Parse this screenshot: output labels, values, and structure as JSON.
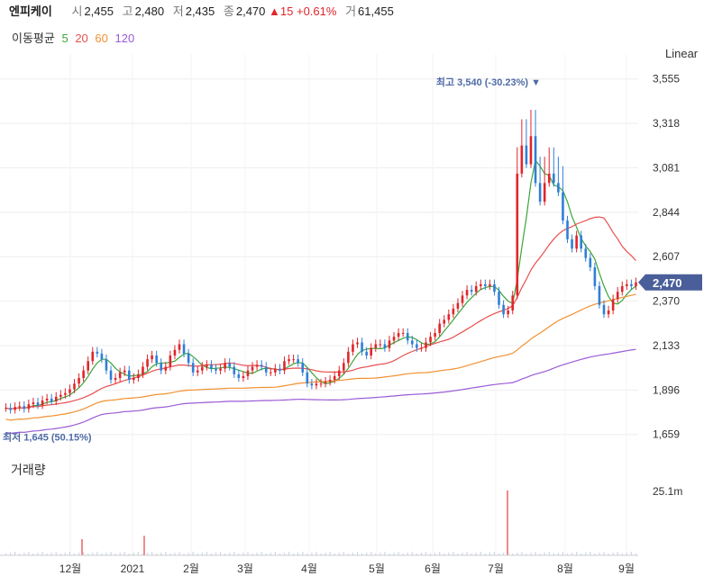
{
  "header": {
    "name": "엔피케이",
    "open_label": "시",
    "open": "2,455",
    "high_label": "고",
    "high": "2,480",
    "low_label": "저",
    "low": "2,435",
    "close_label": "종",
    "close": "2,470",
    "change": "▲15",
    "change_pct": "+0.61%",
    "volume_label": "거",
    "volume": "61,455"
  },
  "ma_legend": {
    "title": "이동평균",
    "periods": [
      {
        "label": "5",
        "color": "#3aa53a"
      },
      {
        "label": "20",
        "color": "#e8504f"
      },
      {
        "label": "60",
        "color": "#f19030"
      },
      {
        "label": "120",
        "color": "#9a5bd6"
      }
    ]
  },
  "scale_label": "Linear",
  "volume_panel_label": "거래량",
  "colors": {
    "up": "#e0262b",
    "down": "#2f7fd6",
    "grid": "#eeeeee",
    "current_price_tag": "#4a5f9a"
  },
  "chart_data": {
    "type": "candlestick",
    "y_axis": {
      "ticks": [
        1659,
        1896,
        2133,
        2370,
        2607,
        2844,
        3081,
        3318,
        3555
      ],
      "tick_labels": [
        "1,659",
        "1,896",
        "2,133",
        "2,370",
        "2,607",
        "2,844",
        "3,081",
        "3,318",
        "3,555"
      ]
    },
    "x_axis": {
      "labels": [
        "12월",
        "2021",
        "2월",
        "3월",
        "4월",
        "5월",
        "6월",
        "7월",
        "8월",
        "9월"
      ]
    },
    "current_price": {
      "value": 2470,
      "label": "2,470"
    },
    "max_marker": {
      "value": 3540,
      "label": "최고 3,540 (-30.23%)"
    },
    "min_marker": {
      "value": 1645,
      "label": "최저 1,645 (50.15%)"
    },
    "volume_axis": {
      "ticks": [
        25100000
      ],
      "tick_labels": [
        "25.1m"
      ]
    },
    "daily_closes": [
      1800,
      1790,
      1805,
      1810,
      1795,
      1820,
      1830,
      1815,
      1840,
      1850,
      1835,
      1860,
      1870,
      1880,
      1900,
      1930,
      1960,
      2000,
      2050,
      2100,
      2090,
      2060,
      2000,
      1950,
      1960,
      1990,
      2000,
      1950,
      1960,
      1980,
      2020,
      2060,
      2080,
      2040,
      2000,
      2020,
      2080,
      2110,
      2140,
      2090,
      2040,
      1990,
      2000,
      2020,
      2030,
      2010,
      2000,
      2010,
      2040,
      2020,
      1980,
      1960,
      1970,
      2000,
      2020,
      2030,
      2020,
      1990,
      1990,
      2010,
      2000,
      2050,
      2060,
      2060,
      2040,
      1990,
      1930,
      1920,
      1930,
      1930,
      1940,
      1950,
      1970,
      2000,
      2040,
      2100,
      2140,
      2150,
      2100,
      2080,
      2120,
      2140,
      2140,
      2120,
      2160,
      2180,
      2200,
      2200,
      2160,
      2140,
      2120,
      2120,
      2150,
      2180,
      2200,
      2250,
      2270,
      2300,
      2330,
      2360,
      2400,
      2430,
      2420,
      2450,
      2460,
      2450,
      2460,
      2420,
      2350,
      2300,
      2320,
      2400,
      3050,
      3200,
      3100,
      3250,
      3000,
      2900,
      3000,
      3050,
      3000,
      2950,
      2800,
      2700,
      2650,
      2720,
      2650,
      2600,
      2550,
      2450,
      2350,
      2300,
      2320,
      2380,
      2420,
      2450,
      2460,
      2450,
      2470
    ],
    "volume_spikes": [
      {
        "month_index": 0,
        "relative": 0.25
      },
      {
        "month_index": 1,
        "relative": 0.3
      },
      {
        "month_index": 7,
        "relative": 1.0
      }
    ]
  }
}
